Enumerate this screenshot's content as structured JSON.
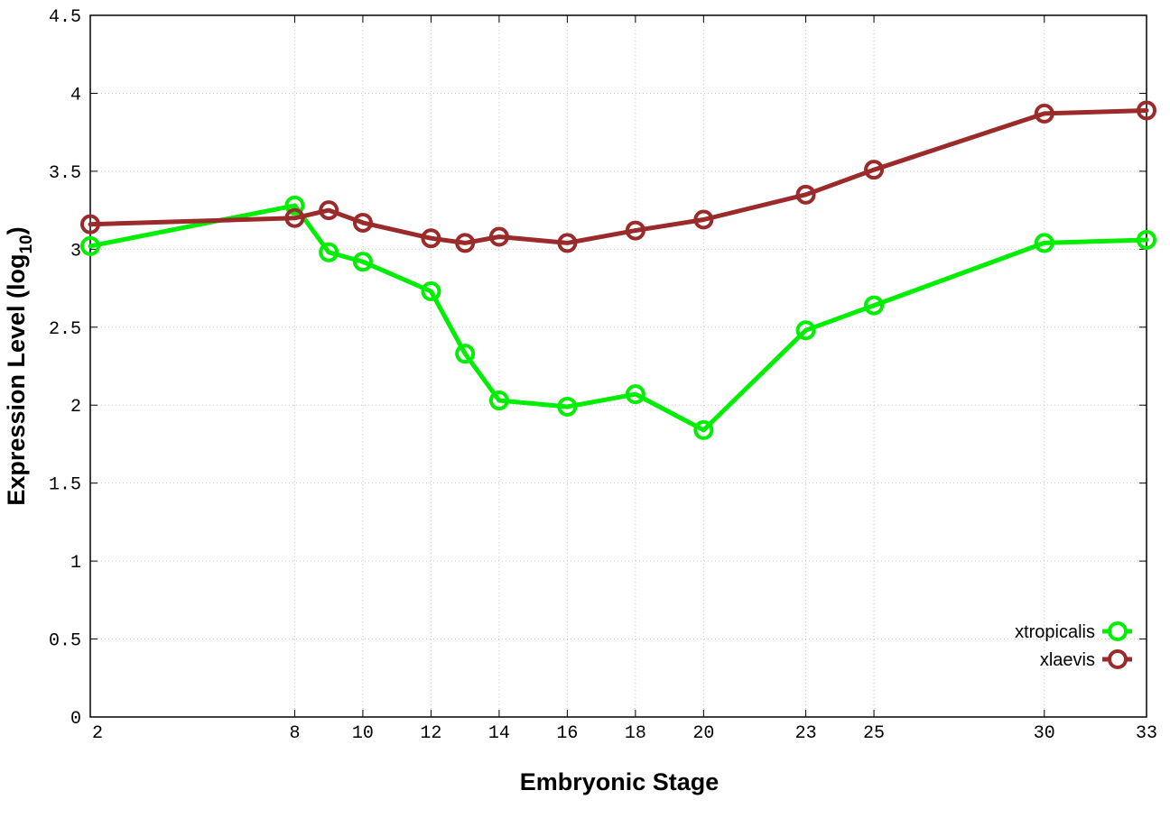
{
  "chart_data": {
    "type": "line",
    "xlabel": "Embryonic Stage",
    "ylabel_main": "Expression Level (log",
    "ylabel_sub": "10",
    "ylabel_close": ")",
    "xlim": [
      2,
      33
    ],
    "ylim": [
      0,
      4.5
    ],
    "x_ticks": [
      2,
      8,
      10,
      12,
      14,
      16,
      18,
      20,
      23,
      25,
      30,
      33
    ],
    "y_ticks": [
      0,
      0.5,
      1,
      1.5,
      2,
      2.5,
      3,
      3.5,
      4,
      4.5
    ],
    "y_tick_labels": [
      "0",
      "0.5",
      "1",
      "1.5",
      "2",
      "2.5",
      "3",
      "3.5",
      "4",
      "4.5"
    ],
    "grid": true,
    "legend_position": "bottom-right",
    "series": [
      {
        "name": "xtropicalis",
        "color": "#00ee00",
        "x": [
          2,
          8,
          9,
          10,
          12,
          13,
          14,
          16,
          18,
          20,
          23,
          25,
          30,
          33
        ],
        "y": [
          3.02,
          3.28,
          2.98,
          2.92,
          2.73,
          2.33,
          2.03,
          1.99,
          2.07,
          1.84,
          2.48,
          2.64,
          3.04,
          3.06
        ]
      },
      {
        "name": "xlaevis",
        "color": "#9b2a2a",
        "x": [
          2,
          8,
          9,
          10,
          12,
          13,
          14,
          16,
          18,
          20,
          23,
          25,
          30,
          33
        ],
        "y": [
          3.16,
          3.2,
          3.25,
          3.17,
          3.07,
          3.04,
          3.08,
          3.04,
          3.12,
          3.19,
          3.35,
          3.51,
          3.87,
          3.89
        ]
      }
    ]
  }
}
